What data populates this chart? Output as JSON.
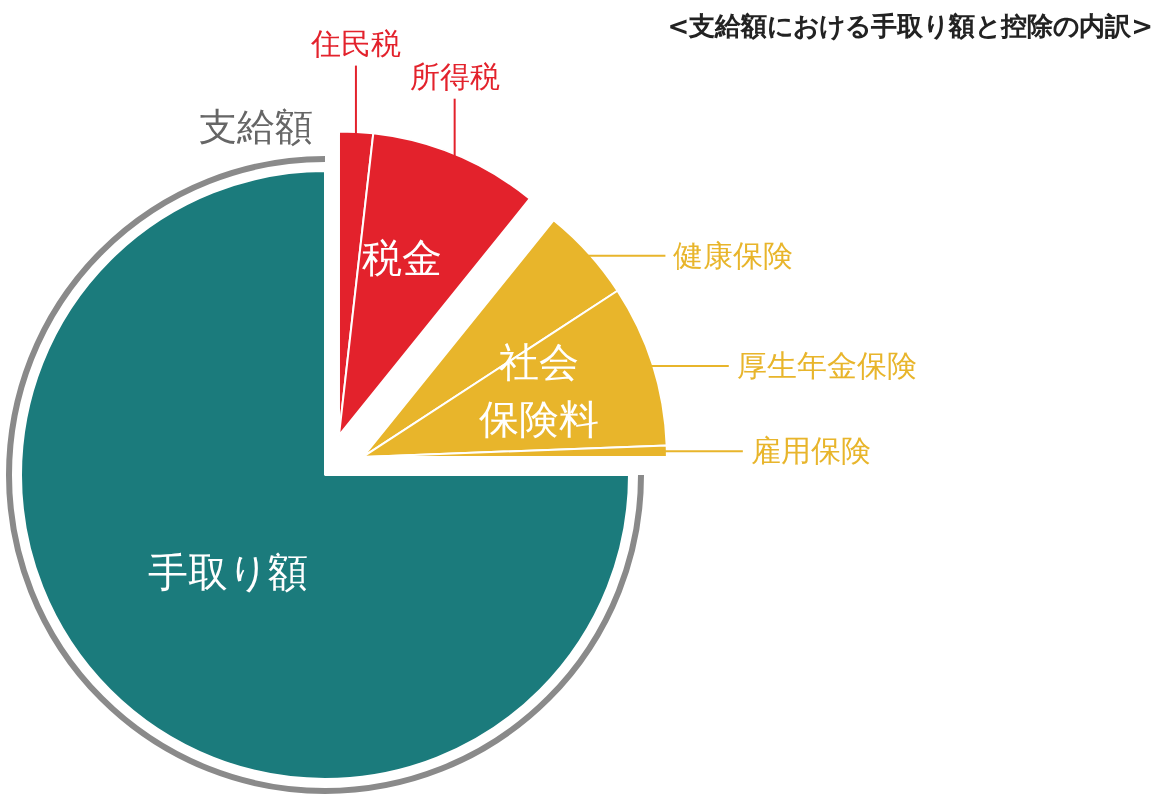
{
  "chart_data": {
    "type": "pie",
    "title": "<支給額における手取り額と控除の内訳>",
    "categories": [
      "住民税",
      "所得税",
      "健康保険",
      "厚生年金保険",
      "雇用保険",
      "手取り額"
    ],
    "values": [
      1.8,
      9.0,
      5.0,
      8.6,
      0.6,
      75.0
    ],
    "colors": [
      "#e3222c",
      "#e3222c",
      "#e8b52b",
      "#e8b52b",
      "#e8b52b",
      "#1b7b7c"
    ],
    "annotations": [
      "税金",
      "社会保険料",
      "支給額"
    ]
  }
}
